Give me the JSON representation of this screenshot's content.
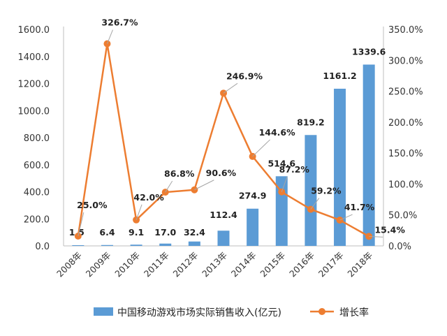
{
  "chart_data": {
    "type": "bar",
    "categories": [
      "2008年",
      "2009年",
      "2010年",
      "2011年",
      "2012年",
      "2013年",
      "2014年",
      "2015年",
      "2016年",
      "2017年",
      "2018年"
    ],
    "series": [
      {
        "name": "中国移动游戏市场实际销售收入(亿元)",
        "type": "bar",
        "axis": "left",
        "color": "#5B9BD5",
        "values": [
          1.5,
          6.4,
          9.1,
          17.0,
          32.4,
          112.4,
          274.9,
          514.6,
          819.2,
          1161.2,
          1339.6
        ],
        "labels": [
          "1.5",
          "6.4",
          "9.1",
          "17.0",
          "32.4",
          "112.4",
          "274.9",
          "514.6",
          "819.2",
          "1161.2",
          "1339.6"
        ]
      },
      {
        "name": "增长率",
        "type": "line",
        "axis": "right",
        "color": "#ED7D31",
        "values": [
          null,
          326.7,
          42.0,
          86.8,
          90.6,
          246.9,
          144.6,
          87.2,
          59.2,
          41.7,
          15.4
        ],
        "line_start_value": 25.0,
        "labels": [
          "25.0%",
          "326.7%",
          "42.0%",
          "86.8%",
          "90.6%",
          "246.9%",
          "144.6%",
          "87.2%",
          "59.2%",
          "41.7%",
          "15.4%"
        ]
      }
    ],
    "y_left": {
      "ylim": [
        0,
        1600
      ],
      "ticks": [
        "0.0",
        "200.0",
        "400.0",
        "600.0",
        "800.0",
        "1000.0",
        "1200.0",
        "1400.0",
        "1600.0"
      ]
    },
    "y_right": {
      "ylim": [
        0,
        350
      ],
      "ticks": [
        "0.0%",
        "50.0%",
        "100.0%",
        "150.0%",
        "200.0%",
        "250.0%",
        "300.0%",
        "350.0%"
      ]
    },
    "grid": false,
    "legend_position": "bottom"
  }
}
